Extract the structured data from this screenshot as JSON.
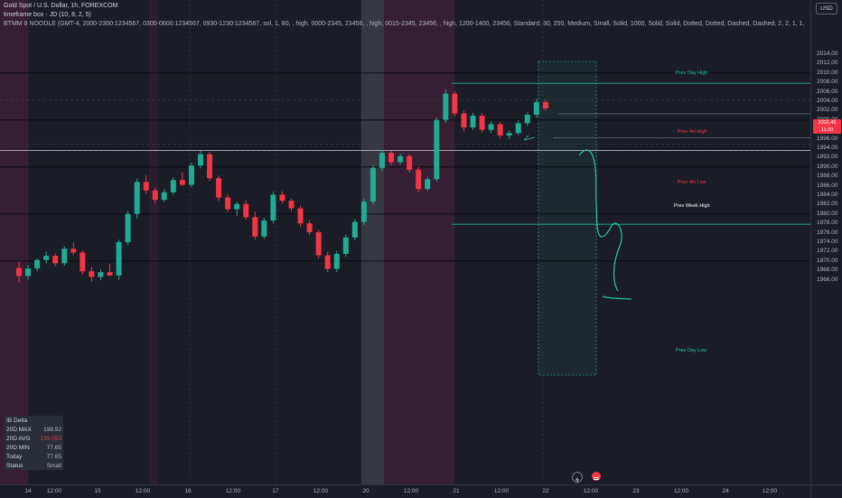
{
  "header": {
    "line1": "Gold Spot / U.S. Dollar, 1h, FOREXCOM",
    "line2": "timeframe box - JD (10, 8, 2, 5)",
    "line3": "BTMM 8 NOODLE (GMT-4, 2000-2300:1234567, 0300-0600:1234567, 0930-1230:1234567, sol, 1, 80, , high, 0000-2345, 23456, , high, 0015-2345, 23456, , high, 1200-1400, 23456, Standard, 30, 250, Medium, Small, Solid, 1000, Solid, Solid, Dotted, Dotted, Dashed, Dashed, 2, 2, 1, 1,"
  },
  "currency": "USD",
  "last_price": {
    "price": "2002.45",
    "countdown": "11:20"
  },
  "price_axis": {
    "ticks": [
      "2014.00",
      "2012.00",
      "2010.00",
      "2008.00",
      "2006.00",
      "2004.00",
      "2002.00",
      "2000.00",
      "1998.00",
      "1996.00",
      "1994.00",
      "1992.00",
      "1990.00",
      "1988.00",
      "1986.00",
      "1984.00",
      "1982.00",
      "1980.00",
      "1978.00",
      "1976.00",
      "1974.00",
      "1972.00",
      "1970.00",
      "1968.00",
      "1966.00"
    ]
  },
  "time_axis": {
    "ticks": [
      "14",
      "12:00",
      "15",
      "12:00",
      "16",
      "12:00",
      "17",
      "12:00",
      "20",
      "12:00",
      "21",
      "12:00",
      "22",
      "12:00",
      "23",
      "12:00",
      "24",
      "12:00"
    ]
  },
  "levels": {
    "prev_day_high": "Prev Day High",
    "prev_4h_high": "Prev 4H High",
    "prev_4h_low": "Prev 4H Low",
    "prev_week_high": "Prev Week High",
    "prev_day_low": "Prev Day Low"
  },
  "delta_table": {
    "title": "IB Delta",
    "rows": [
      {
        "label": "20D MAX",
        "value": "198.92",
        "color": "#b2b5be"
      },
      {
        "label": "20D AVG",
        "value": "139.053",
        "color": "#f23645"
      },
      {
        "label": "20D MIN",
        "value": "77.65",
        "color": "#b2b5be"
      },
      {
        "label": "Today",
        "value": "77.65",
        "color": "#b2b5be"
      },
      {
        "label": "Status",
        "value": "Small",
        "color": "#b2b5be"
      }
    ]
  },
  "colors": {
    "up": "#22ab94",
    "down": "#f23645",
    "teal": "#26c6aa",
    "session_pink": "#3a1f35",
    "session_gray": "#3a3d47",
    "background": "#1b1d26"
  },
  "chart_data": {
    "type": "candlestick",
    "series": [
      {
        "o": 1968.5,
        "h": 1969.8,
        "l": 1965.5,
        "c": 1966.8
      },
      {
        "o": 1966.8,
        "h": 1969.2,
        "l": 1966.0,
        "c": 1968.4
      },
      {
        "o": 1968.4,
        "h": 1970.5,
        "l": 1967.8,
        "c": 1970.2
      },
      {
        "o": 1970.2,
        "h": 1972.0,
        "l": 1969.5,
        "c": 1971.1
      },
      {
        "o": 1971.1,
        "h": 1971.6,
        "l": 1968.9,
        "c": 1969.5
      },
      {
        "o": 1969.5,
        "h": 1973.1,
        "l": 1969.0,
        "c": 1972.6
      },
      {
        "o": 1972.6,
        "h": 1974.0,
        "l": 1971.2,
        "c": 1971.8
      },
      {
        "o": 1971.8,
        "h": 1972.2,
        "l": 1967.2,
        "c": 1967.8
      },
      {
        "o": 1967.8,
        "h": 1968.7,
        "l": 1965.6,
        "c": 1966.6
      },
      {
        "o": 1966.6,
        "h": 1968.2,
        "l": 1965.9,
        "c": 1967.6
      },
      {
        "o": 1967.6,
        "h": 1969.4,
        "l": 1966.8,
        "c": 1966.9
      },
      {
        "o": 1966.9,
        "h": 1974.5,
        "l": 1966.0,
        "c": 1974.0
      },
      {
        "o": 1974.0,
        "h": 1980.6,
        "l": 1973.5,
        "c": 1980.0
      },
      {
        "o": 1980.0,
        "h": 1987.5,
        "l": 1979.0,
        "c": 1986.8
      },
      {
        "o": 1986.8,
        "h": 1988.2,
        "l": 1984.3,
        "c": 1985.0
      },
      {
        "o": 1985.0,
        "h": 1985.6,
        "l": 1982.2,
        "c": 1983.0
      },
      {
        "o": 1983.0,
        "h": 1985.3,
        "l": 1982.5,
        "c": 1984.6
      },
      {
        "o": 1984.6,
        "h": 1987.8,
        "l": 1984.0,
        "c": 1987.2
      },
      {
        "o": 1987.2,
        "h": 1988.8,
        "l": 1985.9,
        "c": 1986.2
      },
      {
        "o": 1986.2,
        "h": 1990.9,
        "l": 1985.7,
        "c": 1990.3
      },
      {
        "o": 1990.3,
        "h": 1993.4,
        "l": 1989.7,
        "c": 1992.7
      },
      {
        "o": 1992.7,
        "h": 1993.2,
        "l": 1987.0,
        "c": 1987.6
      },
      {
        "o": 1987.6,
        "h": 1988.2,
        "l": 1982.8,
        "c": 1983.5
      },
      {
        "o": 1983.5,
        "h": 1984.2,
        "l": 1980.4,
        "c": 1981.0
      },
      {
        "o": 1981.0,
        "h": 1982.6,
        "l": 1979.6,
        "c": 1982.1
      },
      {
        "o": 1982.1,
        "h": 1982.9,
        "l": 1978.8,
        "c": 1979.3
      },
      {
        "o": 1979.3,
        "h": 1980.5,
        "l": 1974.6,
        "c": 1975.2
      },
      {
        "o": 1975.2,
        "h": 1979.2,
        "l": 1974.7,
        "c": 1978.6
      },
      {
        "o": 1978.6,
        "h": 1984.7,
        "l": 1978.0,
        "c": 1984.1
      },
      {
        "o": 1984.1,
        "h": 1984.8,
        "l": 1982.2,
        "c": 1982.8
      },
      {
        "o": 1982.8,
        "h": 1983.2,
        "l": 1980.6,
        "c": 1981.2
      },
      {
        "o": 1981.2,
        "h": 1981.8,
        "l": 1977.3,
        "c": 1978.0
      },
      {
        "o": 1978.0,
        "h": 1978.7,
        "l": 1975.5,
        "c": 1976.1
      },
      {
        "o": 1976.1,
        "h": 1976.6,
        "l": 1970.6,
        "c": 1971.2
      },
      {
        "o": 1971.2,
        "h": 1971.9,
        "l": 1967.6,
        "c": 1968.3
      },
      {
        "o": 1968.3,
        "h": 1972.1,
        "l": 1967.7,
        "c": 1971.5
      },
      {
        "o": 1971.5,
        "h": 1975.6,
        "l": 1970.9,
        "c": 1975.0
      },
      {
        "o": 1975.0,
        "h": 1978.9,
        "l": 1974.4,
        "c": 1978.3
      },
      {
        "o": 1978.3,
        "h": 1983.2,
        "l": 1977.7,
        "c": 1982.6
      },
      {
        "o": 1982.6,
        "h": 1990.3,
        "l": 1982.0,
        "c": 1989.8
      },
      {
        "o": 1989.8,
        "h": 1993.6,
        "l": 1989.2,
        "c": 1993.0
      },
      {
        "o": 1993.0,
        "h": 1993.4,
        "l": 1990.4,
        "c": 1991.0
      },
      {
        "o": 1991.0,
        "h": 1992.9,
        "l": 1990.5,
        "c": 1992.3
      },
      {
        "o": 1992.3,
        "h": 1992.7,
        "l": 1988.8,
        "c": 1989.4
      },
      {
        "o": 1989.4,
        "h": 1990.0,
        "l": 1984.6,
        "c": 1985.3
      },
      {
        "o": 1985.3,
        "h": 1987.9,
        "l": 1984.8,
        "c": 1987.4
      },
      {
        "o": 1987.4,
        "h": 2000.6,
        "l": 1986.8,
        "c": 2000.0
      },
      {
        "o": 2000.0,
        "h": 2006.5,
        "l": 1999.4,
        "c": 2005.6
      },
      {
        "o": 2005.6,
        "h": 2006.1,
        "l": 2000.8,
        "c": 2001.4
      },
      {
        "o": 2001.4,
        "h": 2002.0,
        "l": 1997.6,
        "c": 1998.4
      },
      {
        "o": 1998.4,
        "h": 2001.5,
        "l": 1997.9,
        "c": 2000.9
      },
      {
        "o": 2000.9,
        "h": 2001.4,
        "l": 1997.3,
        "c": 1997.9
      },
      {
        "o": 1997.9,
        "h": 1999.7,
        "l": 1997.2,
        "c": 1999.1
      },
      {
        "o": 1999.1,
        "h": 1999.6,
        "l": 1996.0,
        "c": 1996.7
      },
      {
        "o": 1996.7,
        "h": 1997.8,
        "l": 1995.9,
        "c": 1997.2
      },
      {
        "o": 1997.2,
        "h": 1999.9,
        "l": 1996.7,
        "c": 1999.3
      },
      {
        "o": 1999.3,
        "h": 2001.6,
        "l": 1998.7,
        "c": 2001.1
      },
      {
        "o": 2001.1,
        "h": 2004.5,
        "l": 2000.5,
        "c": 2003.8
      },
      {
        "o": 2003.8,
        "h": 2004.3,
        "l": 2001.9,
        "c": 2002.45
      }
    ]
  }
}
